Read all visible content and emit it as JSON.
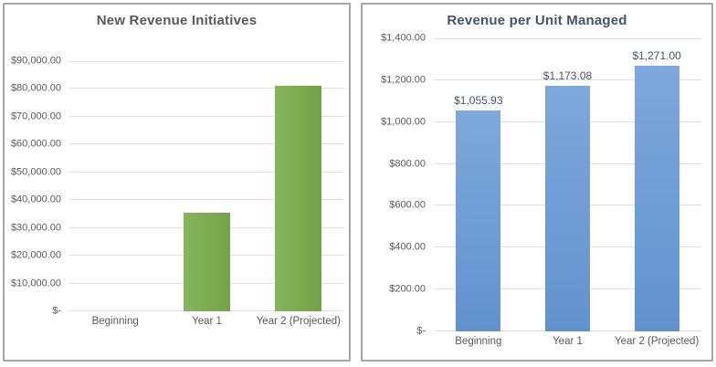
{
  "chart_data": [
    {
      "type": "bar",
      "title": "New Revenue Initiatives",
      "title_color": "#595959",
      "categories": [
        "Beginning",
        "Year 1",
        "Year 2 (Projected)"
      ],
      "values": [
        0,
        35500,
        81000
      ],
      "y_max": 90000,
      "ylim": [
        0,
        90000
      ],
      "y_ticks": [
        "$-",
        "$10,000.00",
        "$20,000.00",
        "$30,000.00",
        "$40,000.00",
        "$50,000.00",
        "$60,000.00",
        "$70,000.00",
        "$80,000.00",
        "$90,000.00"
      ],
      "data_labels": null,
      "xlabel": "",
      "ylabel": "",
      "legend": "none",
      "grid": "horizontal",
      "gridline_color": "#e2e2e2",
      "text_color": "#595959",
      "bar_gradient": {
        "dir": "90deg",
        "stops": [
          "#85b55e",
          "#7cab52",
          "#73a348"
        ]
      }
    },
    {
      "type": "bar",
      "title": "Revenue per Unit Managed",
      "title_color": "#44546a",
      "categories": [
        "Beginning",
        "Year 1",
        "Year 2 (Projected)"
      ],
      "values": [
        1055.93,
        1173.08,
        1271.0
      ],
      "y_max": 1400,
      "ylim": [
        0,
        1400
      ],
      "y_ticks": [
        "$-",
        "$200.00",
        "$400.00",
        "$600.00",
        "$800.00",
        "$1,000.00",
        "$1,200.00",
        "$1,400.00"
      ],
      "data_labels": [
        "$1,055.93",
        "$1,173.08",
        "$1,271.00"
      ],
      "xlabel": "",
      "ylabel": "",
      "legend": "none",
      "grid": "horizontal",
      "gridline_color": "#dbe2ec",
      "text_color": "#595959",
      "data_label_color": "#44546a",
      "bar_gradient": {
        "dir": "180deg",
        "stops": [
          "#7da8db",
          "#6292ce"
        ]
      }
    }
  ]
}
